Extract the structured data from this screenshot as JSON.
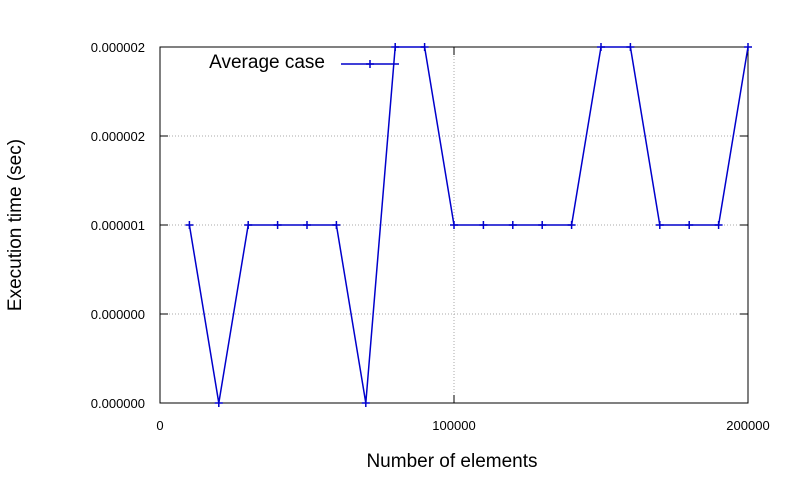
{
  "chart_data": {
    "type": "line",
    "title": "",
    "xlabel": "Number of elements",
    "ylabel": "Execution time (sec)",
    "xlim": [
      0,
      200000
    ],
    "ylim": [
      0,
      2e-06
    ],
    "grid": true,
    "legend_position": "top-left",
    "x_ticks": [
      {
        "value": 0,
        "label": "0"
      },
      {
        "value": 100000,
        "label": "100000"
      },
      {
        "value": 200000,
        "label": "200000"
      }
    ],
    "y_ticks": [
      {
        "value": 0,
        "label": "0.000000"
      },
      {
        "value": 5e-07,
        "label": "0.000000"
      },
      {
        "value": 1e-06,
        "label": "0.000001"
      },
      {
        "value": 1.5e-06,
        "label": "0.000002"
      },
      {
        "value": 2e-06,
        "label": "0.000002"
      }
    ],
    "series": [
      {
        "name": "Average case",
        "color": "#0000cc",
        "marker": "plus",
        "x": [
          10000,
          20000,
          30000,
          40000,
          50000,
          60000,
          70000,
          80000,
          90000,
          100000,
          110000,
          120000,
          130000,
          140000,
          150000,
          160000,
          170000,
          180000,
          190000,
          200000
        ],
        "y": [
          1e-06,
          0,
          1e-06,
          1e-06,
          1e-06,
          1e-06,
          0,
          2e-06,
          2e-06,
          1e-06,
          1e-06,
          1e-06,
          1e-06,
          1e-06,
          2e-06,
          2e-06,
          1e-06,
          1e-06,
          1e-06,
          2e-06
        ]
      }
    ]
  }
}
